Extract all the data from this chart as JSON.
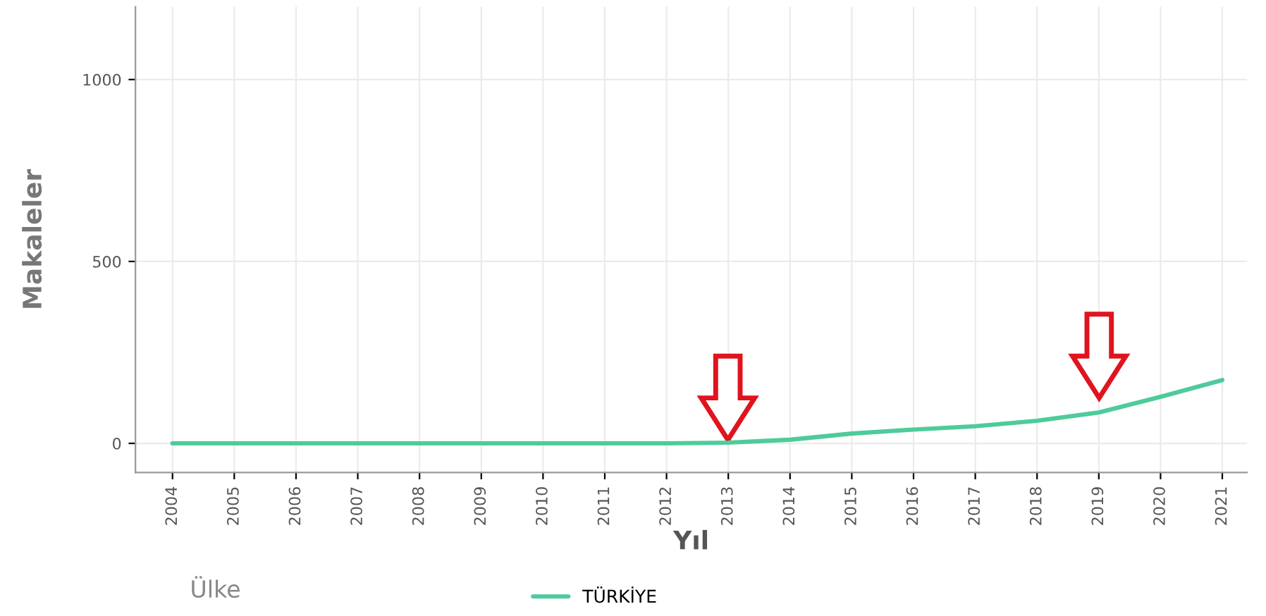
{
  "chart_data": {
    "type": "line",
    "xlabel": "Yıl",
    "ylabel": "Makaleler",
    "legend_title": "Ülke",
    "categories": [
      "2004",
      "2005",
      "2006",
      "2007",
      "2008",
      "2009",
      "2010",
      "2011",
      "2012",
      "2013",
      "2014",
      "2015",
      "2016",
      "2017",
      "2018",
      "2019",
      "2020",
      "2021"
    ],
    "series": [
      {
        "name": "TÜRKİYE",
        "color": "#4ecb9b",
        "values": [
          0,
          0,
          0,
          0,
          0,
          0,
          0,
          0,
          0,
          2,
          10,
          27,
          38,
          47,
          62,
          85,
          128,
          174
        ]
      }
    ],
    "ylim": [
      -80,
      1200
    ],
    "yticks": [
      0,
      500,
      1000
    ],
    "grid": true,
    "legend": "bottom",
    "marker": "none",
    "line_style": "solid"
  }
}
